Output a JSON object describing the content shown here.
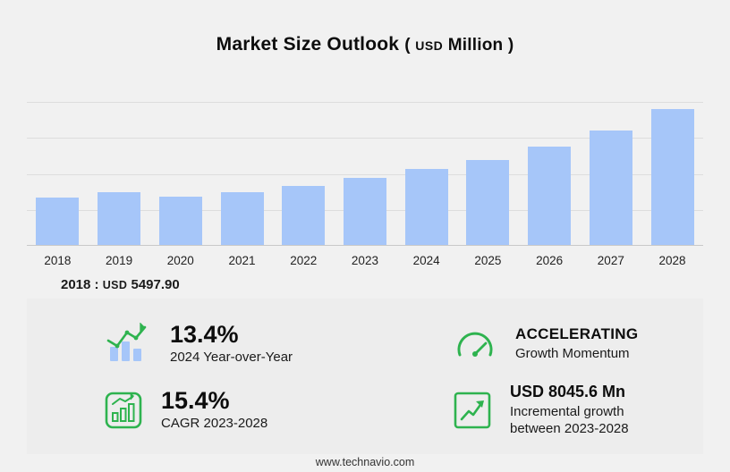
{
  "header": {
    "title": "Market Size Outlook",
    "paren_open": "(",
    "unit_currency": "USD",
    "unit_label": "Million",
    "paren_close": ")"
  },
  "chart_data": {
    "type": "bar",
    "title": "Market Size Outlook (USD Million)",
    "categories": [
      "2018",
      "2019",
      "2020",
      "2021",
      "2022",
      "2023",
      "2024",
      "2025",
      "2026",
      "2027",
      "2028"
    ],
    "values": [
      5497.9,
      6100,
      5650,
      6150,
      6900,
      7737.7,
      8774.4,
      9900,
      11400,
      13300,
      15783.3
    ],
    "xlabel": "",
    "ylabel": "USD Million",
    "ylim": [
      0,
      16600
    ],
    "grid": "horizontal",
    "legend": "none",
    "bar_color": "#a6c6f9"
  },
  "annotation": {
    "year_label": "2018",
    "separator": ":",
    "currency": "USD",
    "value": "5497.90"
  },
  "stats": {
    "yoy": {
      "icon": "bar-growth-icon",
      "value": "13.4%",
      "caption": "2024 Year-over-Year"
    },
    "momentum": {
      "icon": "gauge-icon",
      "title": "ACCELERATING",
      "caption": "Growth Momentum"
    },
    "cagr": {
      "icon": "cagr-bars-icon",
      "value": "15.4%",
      "caption": "CAGR 2023-2028"
    },
    "incremental": {
      "icon": "trend-up-icon",
      "value": "USD 8045.6 Mn",
      "caption_line1": "Incremental growth",
      "caption_line2": "between 2023-2028"
    }
  },
  "footer": {
    "website": "www.technavio.com"
  },
  "colors": {
    "background": "#f1f1f1",
    "panel": "#ededed",
    "bar": "#a6c6f9",
    "accent_green": "#2eb34f"
  }
}
